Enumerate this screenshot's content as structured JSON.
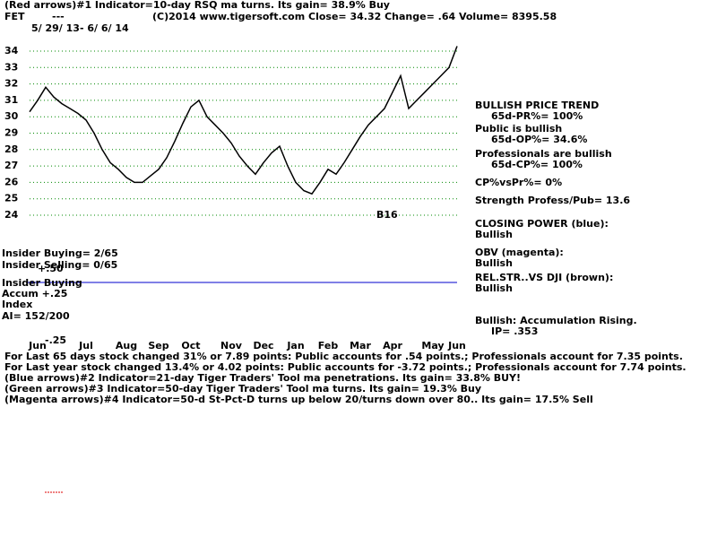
{
  "header": {
    "line1": "(Red arrows)#1 Indicator=10-day RSQ ma turns. Its gain= 38.9% Buy",
    "symbol": "FET",
    "dashes": "---",
    "info": "(C)2014 www.tigersoft.com    Close=  34.32  Change= .64 Volume= 8395.58",
    "dates": "5/ 29/ 13- 6/ 6/ 14"
  },
  "side_panel": [
    "BULLISH PRICE TREND",
    "65d-PR%= 100%",
    "Public is bullish",
    "65d-OP%= 34.6%",
    "Professionals are bullish",
    "65d-CP%= 100%",
    "CP%vsPr%=  0%",
    "Strength Profess/Pub= 13.6",
    "CLOSING POWER (blue):",
    "Bullish",
    "OBV (magenta):",
    "Bullish",
    "REL.STR..VS DJI (brown):",
    "Bullish",
    "Bullish: Accumulation Rising.",
    "IP=  .353"
  ],
  "left_panel": [
    "Insider Buying= 2/65",
    "Insider Selling= 0/65",
    "+.50",
    "Insider Buying",
    "Accum  +.25",
    "Index",
    "AI= 152/200",
    "-.25"
  ],
  "annotation": "B16",
  "footer": [
    "For Last 65 days stock changed  31% or  7.89 points:  Public accounts for  .54 points.;  Professionals account for  7.35 points.",
    "For Last year stock changed  13.4% or  4.02 points:  Public accounts for -3.72 points.;  Professionals account for  7.74 points.",
    "(Blue arrows)#2 Indicator=21-day Tiger Traders' Tool ma penetrations. Its gain= 33.8% BUY!",
    "(Green arrows)#3 Indicator=50-day Tiger Traders' Tool ma turns. Its gain= 19.3% Buy",
    "(Magenta arrows)#4 Indicator=50-d St-Pct-D turns up below 20/turns down over 80.. Its gain= 17.5% Sell"
  ],
  "chart_data": {
    "type": "line",
    "color": "#000000",
    "categories": [
      null,
      "Jun",
      null,
      null,
      null,
      null,
      null,
      "Jul",
      null,
      null,
      null,
      null,
      "Aug",
      null,
      null,
      null,
      "Sep",
      null,
      null,
      null,
      "Oct",
      null,
      null,
      null,
      null,
      "Nov",
      null,
      null,
      null,
      "Dec",
      null,
      null,
      null,
      "Jan",
      null,
      null,
      null,
      "Feb",
      null,
      null,
      null,
      "Mar",
      null,
      null,
      null,
      "Apr",
      null,
      null,
      null,
      null,
      "May",
      null,
      null,
      "Jun"
    ],
    "values": [
      30.3,
      31.0,
      31.8,
      31.2,
      30.8,
      30.5,
      30.2,
      29.8,
      29.0,
      28.0,
      27.2,
      26.8,
      26.3,
      26.0,
      26.0,
      26.4,
      26.8,
      27.5,
      28.5,
      29.6,
      30.6,
      31.0,
      30.0,
      29.5,
      29.0,
      28.4,
      27.6,
      27.0,
      26.5,
      27.2,
      27.8,
      28.2,
      27.0,
      26.0,
      25.5,
      25.3,
      26.0,
      26.8,
      26.5,
      27.2,
      28.0,
      28.8,
      29.5,
      30.0,
      30.5,
      31.5,
      32.5,
      30.5,
      31.0,
      31.5,
      32.0,
      32.5,
      33.0,
      34.3
    ],
    "ylim": [
      24,
      34
    ],
    "yticks": [
      24,
      25,
      26,
      27,
      28,
      29,
      30,
      31,
      32,
      33,
      34
    ],
    "grid": true
  }
}
